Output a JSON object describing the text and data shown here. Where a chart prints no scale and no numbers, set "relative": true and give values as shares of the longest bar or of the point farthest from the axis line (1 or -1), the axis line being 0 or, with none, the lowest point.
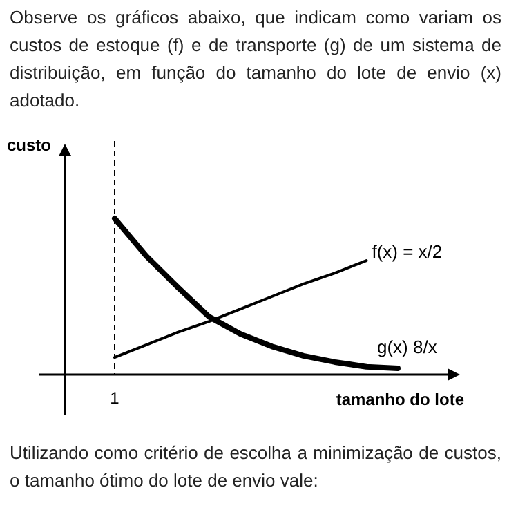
{
  "chart_data": {
    "type": "line",
    "relative": true,
    "title": "Observe os gráficos abaixo, que indicam como variam os custos de estoque (f) e de transporte (g) de um sistema de distribuição, em função do tamanho do lote de envio (x) adotado.",
    "xlabel": "tamanho do lote",
    "ylabel": "custo",
    "marker": "none",
    "line_style": "solid",
    "categories": [
      null,
      null,
      null,
      null,
      null,
      null,
      null,
      null,
      null,
      null
    ],
    "series": [
      {
        "name": "f(x) = x/2",
        "color": "#000000",
        "values": [
          0.11,
          0.19,
          0.27,
          0.34,
          0.42,
          0.5,
          0.58,
          0.65,
          0.73,
          null
        ]
      },
      {
        "name": "g(x) 8/x",
        "color": "#000000",
        "values": [
          1,
          0.76,
          0.56,
          0.37,
          0.26,
          0.18,
          0.12,
          0.08,
          0.05,
          0.04
        ]
      }
    ],
    "ref_lines": [
      {
        "axis": "x",
        "label": "1",
        "line_style": "dashed",
        "color": "#000000"
      }
    ],
    "annotations": [
      "Utilizando como critério de escolha a minimização de custos, o tamanho ótimo do lote de envio vale:"
    ]
  }
}
